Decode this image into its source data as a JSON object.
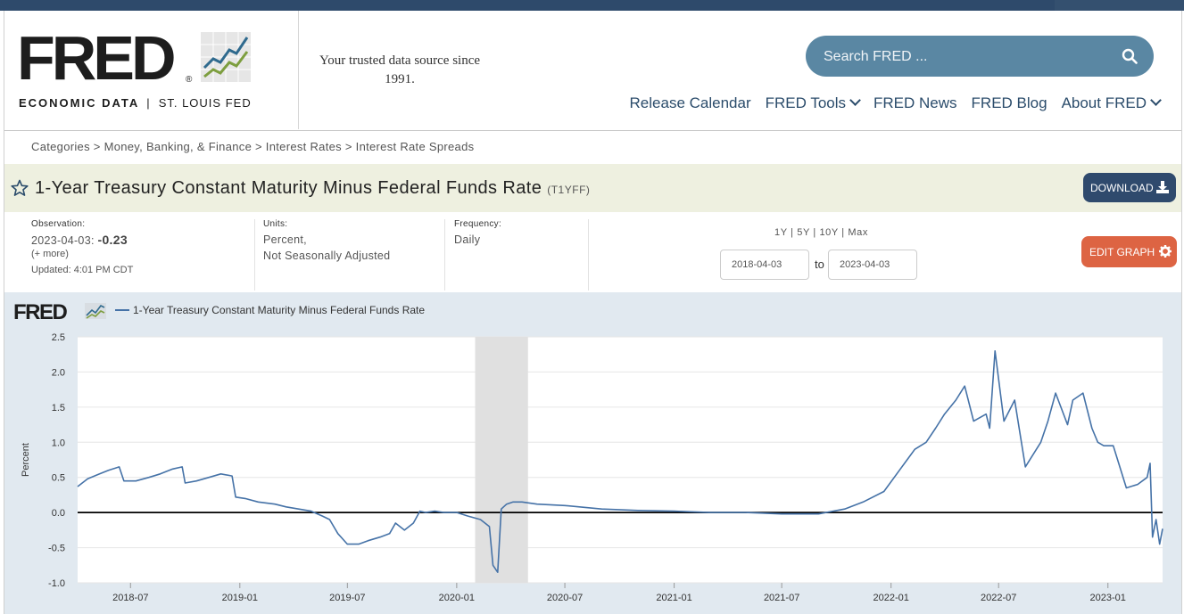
{
  "header": {
    "logo_text": "FRED",
    "logo_sub_left": "ECONOMIC DATA",
    "logo_sub_sep": "|",
    "logo_sub_right": "ST. LOUIS FED",
    "tagline": "Your trusted data source since 1991.",
    "search_placeholder": "Search FRED ...",
    "nav": [
      "Release Calendar",
      "FRED Tools",
      "FRED News",
      "FRED Blog",
      "About FRED"
    ]
  },
  "breadcrumb": "Categories > Money, Banking, & Finance > Interest Rates > Interest Rate Spreads",
  "series": {
    "title": "1-Year Treasury Constant Maturity Minus Federal Funds Rate",
    "code": "(T1YFF)",
    "download_label": "DOWNLOAD"
  },
  "meta": {
    "observation_label": "Observation:",
    "observation_date": "2023-04-03:",
    "observation_value": "-0.23",
    "more": "(+ more)",
    "updated": "Updated: 4:01 PM CDT",
    "units_label": "Units:",
    "units_line1": "Percent,",
    "units_line2": "Not Seasonally Adjusted",
    "frequency_label": "Frequency:",
    "frequency_value": "Daily",
    "range_links": "1Y | 5Y | 10Y | Max",
    "date_from": "2018-04-03",
    "to_label": "to",
    "date_to": "2023-04-03",
    "edit_label": "EDIT GRAPH"
  },
  "colors": {
    "line": "#4572a7",
    "recession": "#e0e0e0",
    "download_bg": "#2f4a6d",
    "edit_bg": "#dd6443",
    "search_bg": "#5a87a3"
  },
  "chart_data": {
    "type": "line",
    "title": "",
    "legend": "1-Year Treasury Constant Maturity Minus Federal Funds Rate",
    "ylabel": "Percent",
    "ylim": [
      -1.0,
      2.5
    ],
    "yticks": [
      "2.5",
      "2.0",
      "1.5",
      "1.0",
      "0.5",
      "0.0",
      "-0.5",
      "-1.0"
    ],
    "xticks": [
      "2018-07",
      "2019-01",
      "2019-07",
      "2020-01",
      "2020-07",
      "2021-01",
      "2021-07",
      "2022-01",
      "2022-07",
      "2023-01"
    ],
    "xrange": [
      "2018-04-03",
      "2023-04-03"
    ],
    "recession": [
      "2020-02-01",
      "2020-04-30"
    ],
    "grid": "horizontal",
    "series": [
      {
        "name": "1-Year Treasury Constant Maturity Minus Federal Funds Rate",
        "x": [
          "2018-04-03",
          "2018-04-20",
          "2018-05-10",
          "2018-05-25",
          "2018-06-12",
          "2018-06-20",
          "2018-07-10",
          "2018-08-01",
          "2018-08-20",
          "2018-09-10",
          "2018-09-26",
          "2018-10-01",
          "2018-10-20",
          "2018-11-10",
          "2018-11-30",
          "2018-12-19",
          "2018-12-25",
          "2019-01-10",
          "2019-02-01",
          "2019-03-01",
          "2019-03-20",
          "2019-04-10",
          "2019-05-01",
          "2019-05-20",
          "2019-06-01",
          "2019-06-15",
          "2019-07-01",
          "2019-07-20",
          "2019-08-05",
          "2019-08-25",
          "2019-09-10",
          "2019-09-20",
          "2019-10-05",
          "2019-10-20",
          "2019-10-31",
          "2019-11-10",
          "2019-11-25",
          "2019-12-10",
          "2020-01-01",
          "2020-01-20",
          "2020-02-10",
          "2020-02-25",
          "2020-03-02",
          "2020-03-10",
          "2020-03-16",
          "2020-03-25",
          "2020-04-05",
          "2020-04-20",
          "2020-05-15",
          "2020-07-01",
          "2020-09-01",
          "2020-11-01",
          "2021-01-01",
          "2021-03-01",
          "2021-05-01",
          "2021-07-01",
          "2021-09-01",
          "2021-10-15",
          "2021-11-15",
          "2021-12-20",
          "2022-01-15",
          "2022-02-10",
          "2022-03-01",
          "2022-03-17",
          "2022-04-01",
          "2022-04-20",
          "2022-05-05",
          "2022-05-20",
          "2022-06-10",
          "2022-06-16",
          "2022-06-25",
          "2022-07-10",
          "2022-07-28",
          "2022-08-15",
          "2022-09-10",
          "2022-09-22",
          "2022-10-05",
          "2022-10-25",
          "2022-11-03",
          "2022-11-20",
          "2022-12-05",
          "2022-12-15",
          "2022-12-25",
          "2023-01-10",
          "2023-02-01",
          "2023-02-20",
          "2023-03-08",
          "2023-03-13",
          "2023-03-17",
          "2023-03-23",
          "2023-03-29",
          "2023-04-03"
        ],
        "y": [
          0.37,
          0.48,
          0.55,
          0.6,
          0.65,
          0.45,
          0.45,
          0.5,
          0.55,
          0.62,
          0.65,
          0.42,
          0.45,
          0.5,
          0.55,
          0.52,
          0.22,
          0.2,
          0.15,
          0.12,
          0.08,
          0.05,
          0.02,
          -0.05,
          -0.1,
          -0.3,
          -0.45,
          -0.45,
          -0.4,
          -0.35,
          -0.3,
          -0.15,
          -0.25,
          -0.15,
          0.02,
          0.0,
          0.02,
          0.0,
          0.0,
          -0.05,
          -0.1,
          -0.2,
          -0.75,
          -0.85,
          0.05,
          0.12,
          0.15,
          0.15,
          0.12,
          0.1,
          0.05,
          0.03,
          0.02,
          0.0,
          0.0,
          -0.02,
          -0.02,
          0.05,
          0.15,
          0.3,
          0.6,
          0.9,
          1.0,
          1.2,
          1.4,
          1.6,
          1.8,
          1.3,
          1.4,
          1.2,
          2.3,
          1.3,
          1.6,
          0.65,
          1.0,
          1.3,
          1.7,
          1.25,
          1.6,
          1.7,
          1.2,
          1.0,
          0.95,
          0.95,
          0.35,
          0.4,
          0.5,
          0.7,
          -0.35,
          -0.1,
          -0.45,
          -0.23
        ]
      }
    ]
  }
}
